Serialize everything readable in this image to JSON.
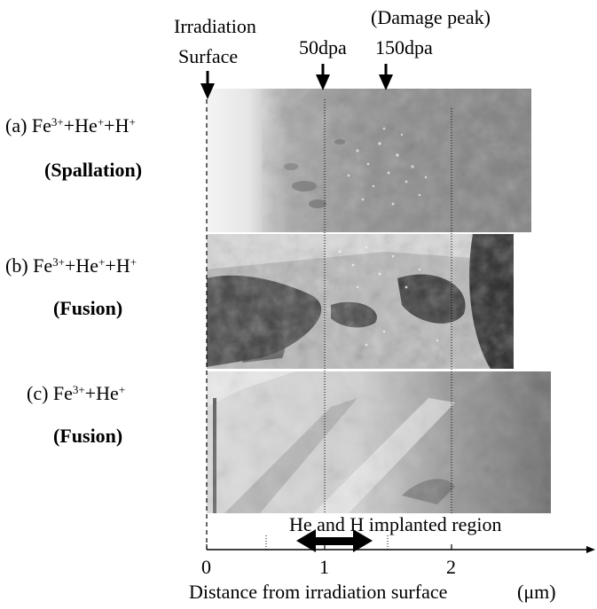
{
  "header": {
    "irradiation_line1": "Irradiation",
    "irradiation_line2": "Surface",
    "damage_peak": "(Damage peak)",
    "dpa_50": "50dpa",
    "dpa_150": "150dpa"
  },
  "panels": [
    {
      "prefix": "(a) Fe",
      "ion1_sup": "3+",
      "plus1": "+He",
      "ion2_sup": "+",
      "plus2": "+H",
      "ion3_sup": "+",
      "type_open": "(",
      "type": "Spallation",
      "type_close": ")"
    },
    {
      "prefix": "(b) Fe",
      "ion1_sup": "3+",
      "plus1": "+He",
      "ion2_sup": "+",
      "plus2": "+H",
      "ion3_sup": "+",
      "type_open": "(",
      "type": "Fusion",
      "type_close": ")"
    },
    {
      "prefix": "(c) Fe",
      "ion1_sup": "3+",
      "plus1": "+He",
      "ion2_sup": "+",
      "type_open": "(",
      "type": "Fusion",
      "type_close": ")"
    }
  ],
  "axis": {
    "ticks": [
      "0",
      "1",
      "2"
    ],
    "title": "Distance from irradiation surface",
    "unit": "(μm)",
    "implanted_label": "He and H implanted region",
    "implanted_range_um": [
      0.7,
      1.3
    ]
  },
  "colors": {
    "arrow": "#000000",
    "axis": "#000000"
  }
}
